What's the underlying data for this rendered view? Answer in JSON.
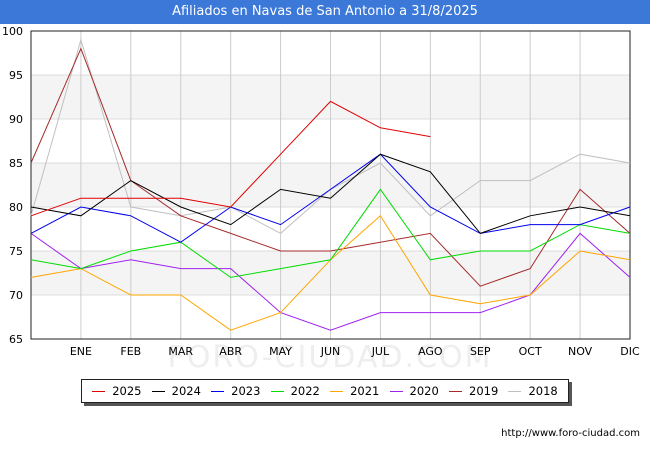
{
  "title": "Afiliados en Navas de San Antonio a 31/8/2025",
  "source": "http://www.foro-ciudad.com",
  "watermark": "FORO-CIUDAD.COM",
  "chart_data": {
    "type": "line",
    "title": "Afiliados en Navas de San Antonio a 31/8/2025",
    "categories": [
      "",
      "ENE",
      "FEB",
      "MAR",
      "ABR",
      "MAY",
      "JUN",
      "JUL",
      "AGO",
      "SEP",
      "OCT",
      "NOV",
      "DIC"
    ],
    "ylim": [
      65,
      100
    ],
    "yticks": [
      65,
      70,
      75,
      80,
      85,
      90,
      95,
      100
    ],
    "grid": true,
    "legend_position": "bottom",
    "series": [
      {
        "name": "2025",
        "color": "#e00000",
        "values": [
          79,
          81,
          81,
          81,
          80,
          86,
          92,
          89,
          88,
          null,
          null,
          null,
          null
        ]
      },
      {
        "name": "2024",
        "color": "#000000",
        "values": [
          80,
          79,
          83,
          80,
          78,
          82,
          81,
          86,
          84,
          77,
          79,
          80,
          79
        ]
      },
      {
        "name": "2023",
        "color": "#0000ee",
        "values": [
          77,
          80,
          79,
          76,
          80,
          78,
          82,
          86,
          80,
          77,
          78,
          78,
          80
        ]
      },
      {
        "name": "2022",
        "color": "#00dd00",
        "values": [
          74,
          73,
          75,
          76,
          72,
          73,
          74,
          82,
          74,
          75,
          75,
          78,
          77
        ]
      },
      {
        "name": "2021",
        "color": "#ffa500",
        "values": [
          72,
          73,
          70,
          70,
          66,
          68,
          74,
          79,
          70,
          69,
          70,
          75,
          74
        ]
      },
      {
        "name": "2020",
        "color": "#a020f0",
        "values": [
          77,
          73,
          74,
          73,
          73,
          68,
          66,
          68,
          68,
          68,
          70,
          77,
          72
        ]
      },
      {
        "name": "2019",
        "color": "#a52a2a",
        "values": [
          85,
          98,
          83,
          79,
          77,
          75,
          75,
          76,
          77,
          71,
          73,
          82,
          77
        ]
      },
      {
        "name": "2018",
        "color": "#c0c0c0",
        "values": [
          79,
          99,
          80,
          79,
          80,
          77,
          82,
          85,
          79,
          83,
          83,
          86,
          85
        ]
      }
    ]
  }
}
